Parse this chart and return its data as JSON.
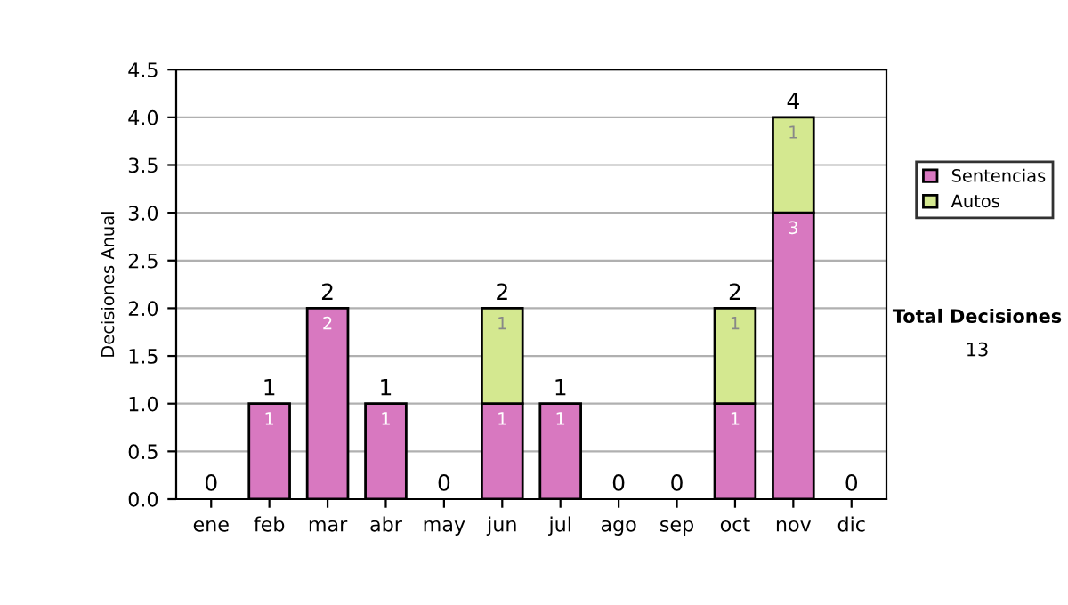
{
  "chart_data": {
    "type": "bar",
    "ylabel": "Decisiones Anual",
    "stacked": true,
    "categories": [
      "ene",
      "feb",
      "mar",
      "abr",
      "may",
      "jun",
      "jul",
      "ago",
      "sep",
      "oct",
      "nov",
      "dic"
    ],
    "series": [
      {
        "name": "Sentencias",
        "color": "#d878c0",
        "values": [
          0,
          1,
          2,
          1,
          0,
          1,
          1,
          0,
          0,
          1,
          3,
          0
        ],
        "value_labels": [
          null,
          "1",
          "2",
          "1",
          null,
          "1",
          "1",
          null,
          null,
          "1",
          "3",
          null
        ]
      },
      {
        "name": "Autos",
        "color": "#d4e890",
        "values": [
          0,
          0,
          0,
          0,
          0,
          1,
          0,
          0,
          0,
          1,
          1,
          0
        ],
        "value_labels": [
          null,
          null,
          null,
          null,
          null,
          "1",
          null,
          null,
          null,
          "1",
          "1",
          null
        ]
      }
    ],
    "totals": [
      "0",
      "1",
      "2",
      "1",
      "0",
      "2",
      "1",
      "0",
      "0",
      "2",
      "4",
      "0"
    ],
    "ylim": [
      0,
      4.5
    ],
    "yticks": [
      {
        "value": 0,
        "label": "0.0"
      },
      {
        "value": 0.5,
        "label": "0.5"
      },
      {
        "value": 1,
        "label": "1.0"
      },
      {
        "value": 1.5,
        "label": "1.5"
      },
      {
        "value": 2,
        "label": "2.0"
      },
      {
        "value": 2.5,
        "label": "2.5"
      },
      {
        "value": 3,
        "label": "3.0"
      },
      {
        "value": 3.5,
        "label": "3.5"
      },
      {
        "value": 4,
        "label": "4.0"
      },
      {
        "value": 4.5,
        "label": "4.5"
      }
    ],
    "grid": "y",
    "legend": "right",
    "annotations": [
      "Total Decisiones",
      "13"
    ]
  }
}
